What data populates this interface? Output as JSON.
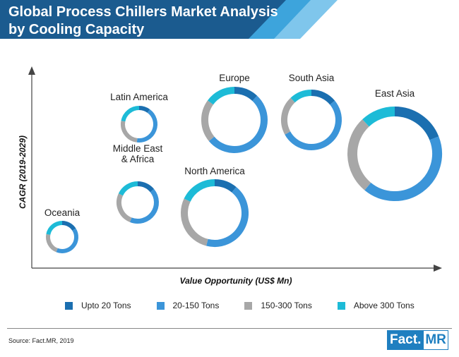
{
  "header": {
    "title_line1": "Global Process Chillers Market Analysis",
    "title_line2": "by Cooling Capacity",
    "colors": {
      "bar": "#1b5b8f",
      "stripe1": "#3da4dc",
      "stripe2": "#7fc6ec"
    }
  },
  "chart_data": {
    "type": "donut-bubble",
    "title": "Global Process Chillers Market Analysis by Cooling Capacity",
    "xlabel": "Value Opportunity (US$ Mn)",
    "ylabel": "CAGR (2019-2029)",
    "legend": {
      "placement": "bottom",
      "items": [
        "Upto 20 Tons",
        "20-150 Tons",
        "150-300 Tons",
        "Above 300 Tons"
      ],
      "colors": [
        "#1b6fb0",
        "#3b95d9",
        "#a7a7a7",
        "#1dbbd7"
      ]
    },
    "series": [
      {
        "name": "Oceania",
        "label": [
          "Oceania"
        ],
        "shares": [
          0.16,
          0.4,
          0.22,
          0.22
        ]
      },
      {
        "name": "Latin America",
        "label": [
          "Latin America"
        ],
        "shares": [
          0.1,
          0.42,
          0.26,
          0.22
        ]
      },
      {
        "name": "Middle East & Africa",
        "label": [
          "Middle East",
          "& Africa"
        ],
        "shares": [
          0.14,
          0.42,
          0.26,
          0.18
        ]
      },
      {
        "name": "North America",
        "label": [
          "North America"
        ],
        "shares": [
          0.11,
          0.43,
          0.28,
          0.18
        ]
      },
      {
        "name": "Europe",
        "label": [
          "Europe"
        ],
        "shares": [
          0.12,
          0.52,
          0.21,
          0.15
        ]
      },
      {
        "name": "South Asia",
        "label": [
          "South Asia"
        ],
        "shares": [
          0.14,
          0.53,
          0.21,
          0.12
        ]
      },
      {
        "name": "East Asia",
        "label": [
          "East Asia"
        ],
        "shares": [
          0.19,
          0.42,
          0.27,
          0.12
        ]
      }
    ]
  },
  "footer": {
    "source": "Source: Fact.MR, 2019",
    "logo_part1": "Fact.",
    "logo_part2": "MR"
  }
}
